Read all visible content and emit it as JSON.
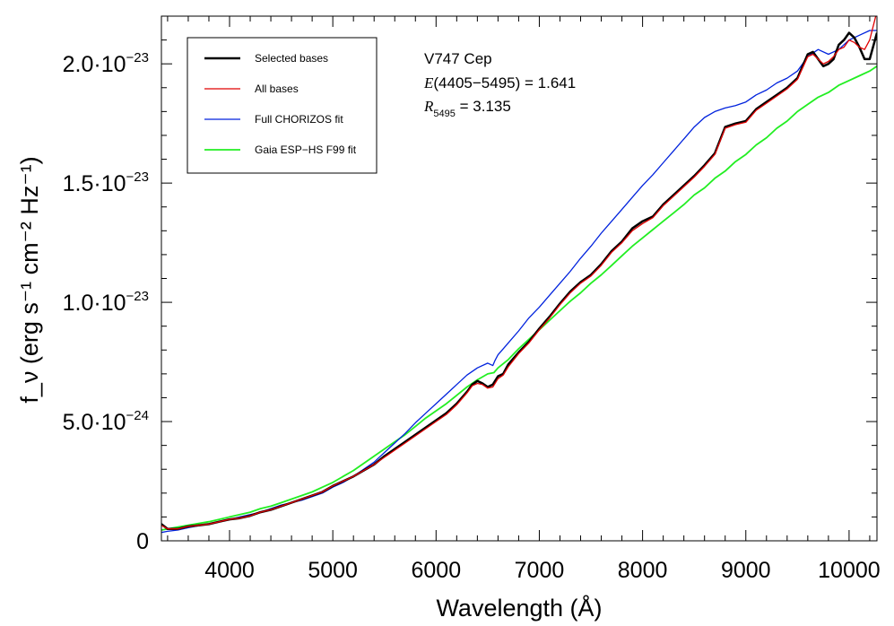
{
  "chart_data": {
    "type": "line",
    "xlabel": "Wavelength (Å)",
    "ylabel": "f_ν (erg s⁻¹ cm⁻² Hz⁻¹)",
    "xlim": [
      3340,
      10270
    ],
    "ylim": [
      0,
      2.2e-23
    ],
    "x_ticks": [
      4000,
      5000,
      6000,
      7000,
      8000,
      9000,
      10000
    ],
    "x_tick_labels": [
      "4000",
      "5000",
      "6000",
      "7000",
      "8000",
      "9000",
      "10000"
    ],
    "y_ticks": [
      0,
      5e-24,
      1e-23,
      1.5e-23,
      2e-23
    ],
    "y_tick_labels": [
      {
        "mantissa": "0",
        "exp": ""
      },
      {
        "mantissa": "5.0·10",
        "exp": "−24"
      },
      {
        "mantissa": "1.0·10",
        "exp": "−23"
      },
      {
        "mantissa": "1.5·10",
        "exp": "−23"
      },
      {
        "mantissa": "2.0·10",
        "exp": "−23"
      }
    ],
    "grid": false,
    "legend_position": "top-left",
    "annotations": {
      "star": "V747 Cep",
      "ebv_label": "E",
      "ebv_text": "(4405−5495) = 1.641",
      "r_label": "R",
      "r_sub": "5495",
      "r_text": " = 3.135"
    },
    "series": [
      {
        "name": "Selected bases",
        "color": "#000000",
        "width": 2.5,
        "x": [
          3340,
          3400,
          3500,
          3600,
          3700,
          3800,
          3900,
          4000,
          4100,
          4200,
          4300,
          4400,
          4500,
          4600,
          4700,
          4800,
          4900,
          5000,
          5100,
          5200,
          5300,
          5400,
          5500,
          5600,
          5700,
          5800,
          5900,
          6000,
          6100,
          6200,
          6300,
          6350,
          6400,
          6450,
          6500,
          6550,
          6600,
          6650,
          6700,
          6800,
          6900,
          7000,
          7100,
          7200,
          7300,
          7400,
          7500,
          7600,
          7700,
          7800,
          7900,
          8000,
          8100,
          8200,
          8300,
          8400,
          8500,
          8600,
          8700,
          8800,
          8900,
          9000,
          9100,
          9200,
          9300,
          9400,
          9500,
          9600,
          9650,
          9700,
          9750,
          9800,
          9850,
          9900,
          9950,
          10000,
          10050,
          10100,
          10150,
          10200,
          10270
        ],
        "y": [
          7e-25,
          5e-25,
          5e-25,
          6e-25,
          6.5e-25,
          7e-25,
          8e-25,
          9e-25,
          9.5e-25,
          1.05e-24,
          1.2e-24,
          1.3e-24,
          1.45e-24,
          1.6e-24,
          1.75e-24,
          1.9e-24,
          2.05e-24,
          2.3e-24,
          2.5e-24,
          2.7e-24,
          2.95e-24,
          3.2e-24,
          3.55e-24,
          3.85e-24,
          4.15e-24,
          4.45e-24,
          4.75e-24,
          5.05e-24,
          5.35e-24,
          5.75e-24,
          6.25e-24,
          6.55e-24,
          6.7e-24,
          6.6e-24,
          6.45e-24,
          6.55e-24,
          6.9e-24,
          7e-24,
          7.4e-24,
          7.9e-24,
          8.35e-24,
          8.9e-24,
          9.4e-24,
          9.95e-24,
          1.045e-23,
          1.085e-23,
          1.115e-23,
          1.16e-23,
          1.215e-23,
          1.255e-23,
          1.31e-23,
          1.34e-23,
          1.36e-23,
          1.41e-23,
          1.45e-23,
          1.49e-23,
          1.53e-23,
          1.575e-23,
          1.625e-23,
          1.735e-23,
          1.75e-23,
          1.76e-23,
          1.81e-23,
          1.84e-23,
          1.87e-23,
          1.9e-23,
          1.94e-23,
          2.04e-23,
          2.05e-23,
          2.02e-23,
          1.99e-23,
          2e-23,
          2.02e-23,
          2.08e-23,
          2.1e-23,
          2.13e-23,
          2.11e-23,
          2.07e-23,
          2.02e-23,
          2.02e-23,
          2.13e-23
        ]
      },
      {
        "name": "All bases",
        "color": "#e00000",
        "width": 1.3,
        "x": [
          3340,
          3400,
          3500,
          3600,
          3700,
          3800,
          3900,
          4000,
          4100,
          4200,
          4300,
          4400,
          4500,
          4600,
          4700,
          4800,
          4900,
          5000,
          5100,
          5200,
          5300,
          5400,
          5500,
          5600,
          5700,
          5800,
          5900,
          6000,
          6100,
          6200,
          6300,
          6350,
          6400,
          6450,
          6500,
          6550,
          6600,
          6650,
          6700,
          6800,
          6900,
          7000,
          7100,
          7200,
          7300,
          7400,
          7500,
          7600,
          7700,
          7800,
          7900,
          8000,
          8100,
          8200,
          8300,
          8400,
          8500,
          8600,
          8700,
          8800,
          8900,
          9000,
          9100,
          9200,
          9300,
          9400,
          9500,
          9600,
          9650,
          9700,
          9750,
          9800,
          9850,
          9900,
          9950,
          10000,
          10050,
          10100,
          10150,
          10200,
          10270
        ],
        "y": [
          6.5e-25,
          5e-25,
          5e-25,
          6e-25,
          6.5e-25,
          7e-25,
          8e-25,
          9e-25,
          9.5e-25,
          1.05e-24,
          1.2e-24,
          1.3e-24,
          1.45e-24,
          1.6e-24,
          1.75e-24,
          1.9e-24,
          2.05e-24,
          2.3e-24,
          2.5e-24,
          2.7e-24,
          2.95e-24,
          3.2e-24,
          3.5e-24,
          3.8e-24,
          4.1e-24,
          4.4e-24,
          4.7e-24,
          5e-24,
          5.3e-24,
          5.7e-24,
          6.2e-24,
          6.5e-24,
          6.6e-24,
          6.55e-24,
          6.4e-24,
          6.45e-24,
          6.8e-24,
          6.95e-24,
          7.3e-24,
          7.85e-24,
          8.3e-24,
          8.85e-24,
          9.35e-24,
          9.9e-24,
          1.04e-23,
          1.08e-23,
          1.11e-23,
          1.155e-23,
          1.21e-23,
          1.25e-23,
          1.3e-23,
          1.33e-23,
          1.355e-23,
          1.405e-23,
          1.445e-23,
          1.485e-23,
          1.525e-23,
          1.57e-23,
          1.62e-23,
          1.73e-23,
          1.745e-23,
          1.755e-23,
          1.805e-23,
          1.835e-23,
          1.865e-23,
          1.895e-23,
          1.935e-23,
          2.03e-23,
          2.04e-23,
          2.02e-23,
          2e-23,
          2.01e-23,
          2.03e-23,
          2.06e-23,
          2.07e-23,
          2.1e-23,
          2.09e-23,
          2.07e-23,
          2.06e-23,
          2.1e-23,
          2.22e-23
        ]
      },
      {
        "name": "Full CHORIZOS fit",
        "color": "#0022dd",
        "width": 1.3,
        "x": [
          3340,
          3400,
          3500,
          3600,
          3700,
          3800,
          3900,
          4000,
          4100,
          4200,
          4300,
          4400,
          4500,
          4600,
          4700,
          4800,
          4900,
          5000,
          5100,
          5200,
          5300,
          5400,
          5500,
          5600,
          5700,
          5800,
          5900,
          6000,
          6100,
          6200,
          6300,
          6400,
          6500,
          6550,
          6570,
          6600,
          6650,
          6700,
          6800,
          6900,
          7000,
          7100,
          7200,
          7300,
          7400,
          7500,
          7600,
          7700,
          7800,
          7900,
          8000,
          8100,
          8200,
          8300,
          8400,
          8500,
          8600,
          8700,
          8800,
          8900,
          9000,
          9100,
          9200,
          9300,
          9400,
          9500,
          9600,
          9700,
          9800,
          9900,
          10000,
          10100,
          10200,
          10270
        ],
        "y": [
          3.5e-25,
          4e-25,
          4.5e-25,
          5.5e-25,
          6.3e-25,
          7e-25,
          8e-25,
          9e-25,
          1e-24,
          1.1e-24,
          1.2e-24,
          1.35e-24,
          1.5e-24,
          1.6e-24,
          1.7e-24,
          1.85e-24,
          2e-24,
          2.25e-24,
          2.45e-24,
          2.7e-24,
          3e-24,
          3.3e-24,
          3.7e-24,
          4.1e-24,
          4.5e-24,
          4.95e-24,
          5.35e-24,
          5.75e-24,
          6.15e-24,
          6.55e-24,
          6.95e-24,
          7.25e-24,
          7.45e-24,
          7.35e-24,
          7.55e-24,
          7.8e-24,
          8.05e-24,
          8.3e-24,
          8.8e-24,
          9.35e-24,
          9.8e-24,
          1.03e-23,
          1.08e-23,
          1.13e-23,
          1.185e-23,
          1.235e-23,
          1.29e-23,
          1.34e-23,
          1.39e-23,
          1.44e-23,
          1.49e-23,
          1.535e-23,
          1.585e-23,
          1.635e-23,
          1.685e-23,
          1.735e-23,
          1.775e-23,
          1.8e-23,
          1.815e-23,
          1.825e-23,
          1.84e-23,
          1.87e-23,
          1.89e-23,
          1.92e-23,
          1.94e-23,
          1.97e-23,
          2.03e-23,
          2.06e-23,
          2.04e-23,
          2.06e-23,
          2.1e-23,
          2.12e-23,
          2.14e-23,
          2.14e-23
        ]
      },
      {
        "name": "Gaia ESP−HS F99 fit",
        "color": "#22ee22",
        "width": 1.8,
        "x": [
          3340,
          3400,
          3500,
          3600,
          3700,
          3800,
          3900,
          4000,
          4100,
          4200,
          4300,
          4400,
          4500,
          4600,
          4700,
          4800,
          4900,
          5000,
          5100,
          5200,
          5300,
          5400,
          5500,
          5600,
          5700,
          5800,
          5900,
          6000,
          6100,
          6200,
          6300,
          6400,
          6500,
          6560,
          6600,
          6700,
          6800,
          6900,
          7000,
          7100,
          7200,
          7300,
          7400,
          7500,
          7600,
          7700,
          7800,
          7900,
          8000,
          8100,
          8200,
          8300,
          8400,
          8500,
          8600,
          8700,
          8800,
          8900,
          9000,
          9100,
          9200,
          9300,
          9400,
          9500,
          9600,
          9700,
          9800,
          9900,
          10000,
          10100,
          10200,
          10270
        ],
        "y": [
          4.5e-25,
          5e-25,
          5.8e-25,
          6.5e-25,
          7.3e-25,
          8e-25,
          9e-25,
          1e-24,
          1.1e-24,
          1.2e-24,
          1.35e-24,
          1.45e-24,
          1.6e-24,
          1.75e-24,
          1.9e-24,
          2.05e-24,
          2.25e-24,
          2.45e-24,
          2.7e-24,
          2.95e-24,
          3.25e-24,
          3.55e-24,
          3.85e-24,
          4.15e-24,
          4.45e-24,
          4.8e-24,
          5.15e-24,
          5.45e-24,
          5.75e-24,
          6.1e-24,
          6.45e-24,
          6.75e-24,
          7e-24,
          7.05e-24,
          7.25e-24,
          7.6e-24,
          8.05e-24,
          8.45e-24,
          8.85e-24,
          9.25e-24,
          9.65e-24,
          1.005e-23,
          1.04e-23,
          1.08e-23,
          1.115e-23,
          1.155e-23,
          1.195e-23,
          1.235e-23,
          1.27e-23,
          1.305e-23,
          1.34e-23,
          1.375e-23,
          1.41e-23,
          1.45e-23,
          1.48e-23,
          1.52e-23,
          1.55e-23,
          1.59e-23,
          1.62e-23,
          1.66e-23,
          1.69e-23,
          1.73e-23,
          1.76e-23,
          1.8e-23,
          1.83e-23,
          1.86e-23,
          1.88e-23,
          1.91e-23,
          1.93e-23,
          1.95e-23,
          1.97e-23,
          1.99e-23
        ]
      }
    ]
  }
}
